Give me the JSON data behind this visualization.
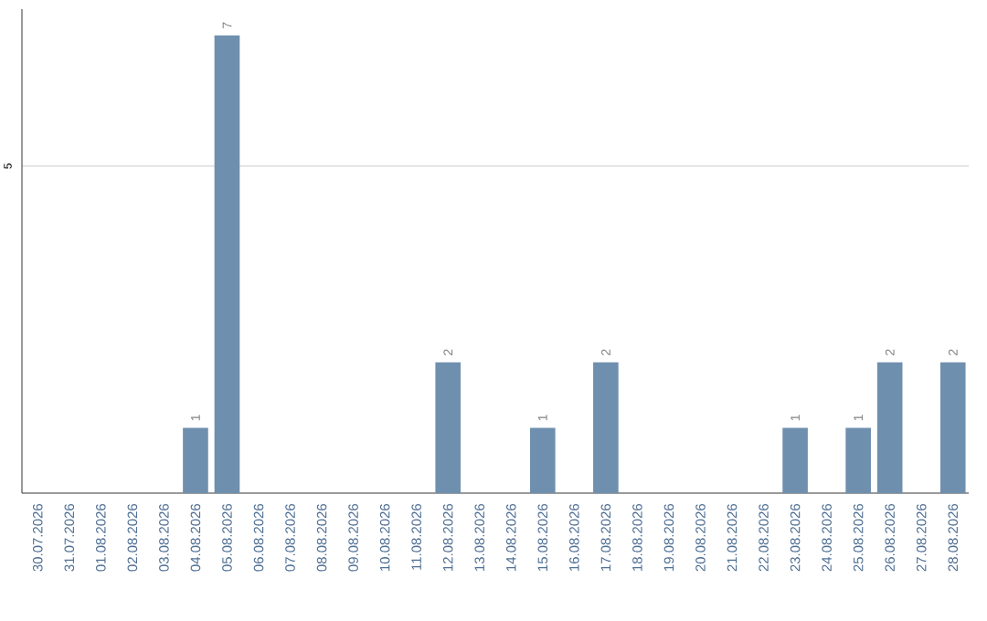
{
  "chart_data": {
    "type": "bar",
    "categories": [
      "30.07.2026",
      "31.07.2026",
      "01.08.2026",
      "02.08.2026",
      "03.08.2026",
      "04.08.2026",
      "05.08.2026",
      "06.08.2026",
      "07.08.2026",
      "08.08.2026",
      "09.08.2026",
      "10.08.2026",
      "11.08.2026",
      "12.08.2026",
      "13.08.2026",
      "14.08.2026",
      "15.08.2026",
      "16.08.2026",
      "17.08.2026",
      "18.08.2026",
      "19.08.2026",
      "20.08.2026",
      "21.08.2026",
      "22.08.2026",
      "23.08.2026",
      "24.08.2026",
      "25.08.2026",
      "26.08.2026",
      "27.08.2026",
      "28.08.2026"
    ],
    "values": [
      0,
      0,
      0,
      0,
      0,
      1,
      7,
      0,
      0,
      0,
      0,
      0,
      0,
      2,
      0,
      0,
      1,
      0,
      2,
      0,
      0,
      0,
      0,
      0,
      1,
      0,
      1,
      2,
      0,
      2
    ],
    "value_labels": [
      null,
      null,
      null,
      null,
      null,
      "1",
      "7",
      null,
      null,
      null,
      null,
      null,
      null,
      "2",
      null,
      null,
      "1",
      null,
      "2",
      null,
      null,
      null,
      null,
      null,
      "1",
      null,
      "1",
      "2",
      null,
      "2"
    ],
    "color": "#6f8fae",
    "ylim": [
      0,
      7.4
    ],
    "yticks": [
      5
    ],
    "grid": "y"
  }
}
